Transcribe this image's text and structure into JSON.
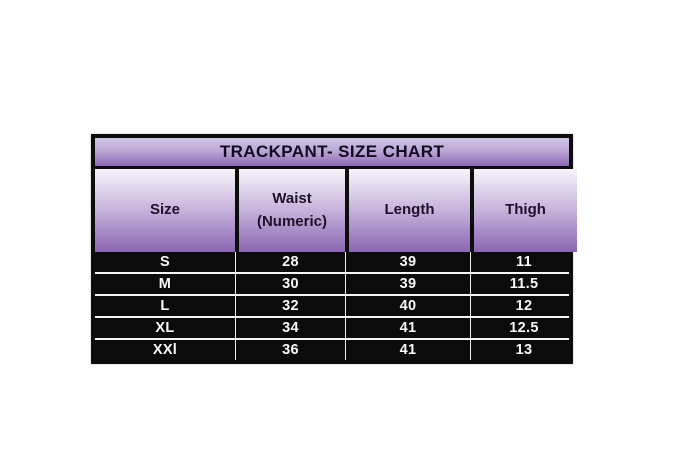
{
  "table": {
    "title": "TRACKPANT- SIZE CHART",
    "headers": [
      "Size",
      "Waist\n(Numeric)",
      "Length",
      "Thigh"
    ],
    "rows": [
      {
        "size": "S",
        "waist": "28",
        "length": "39",
        "thigh": "11"
      },
      {
        "size": "M",
        "waist": "30",
        "length": "39",
        "thigh": "11.5"
      },
      {
        "size": "L",
        "waist": "32",
        "length": "40",
        "thigh": "12"
      },
      {
        "size": "XL",
        "waist": "34",
        "length": "41",
        "thigh": "12.5"
      },
      {
        "size": "XXl",
        "waist": "36",
        "length": "41",
        "thigh": "13"
      }
    ]
  },
  "chart_data": {
    "type": "table",
    "title": "TRACKPANT- SIZE CHART",
    "columns": [
      "Size",
      "Waist (Numeric)",
      "Length",
      "Thigh"
    ],
    "rows": [
      [
        "S",
        "28",
        "39",
        "11"
      ],
      [
        "M",
        "30",
        "39",
        "11.5"
      ],
      [
        "L",
        "32",
        "40",
        "12"
      ],
      [
        "XL",
        "34",
        "41",
        "12.5"
      ],
      [
        "XXl",
        "36",
        "41",
        "13"
      ]
    ]
  },
  "colors": {
    "title_gradient_top": "#d2c8e7",
    "title_gradient_bottom": "#8c69b4",
    "header_gradient_top": "#f7f4fb",
    "header_gradient_bottom": "#8a65b1",
    "border_black": "#0d0d0d",
    "data_background": "#0b0b0b",
    "data_text": "#f8f8f8",
    "separator_white": "#f5f5f5"
  }
}
